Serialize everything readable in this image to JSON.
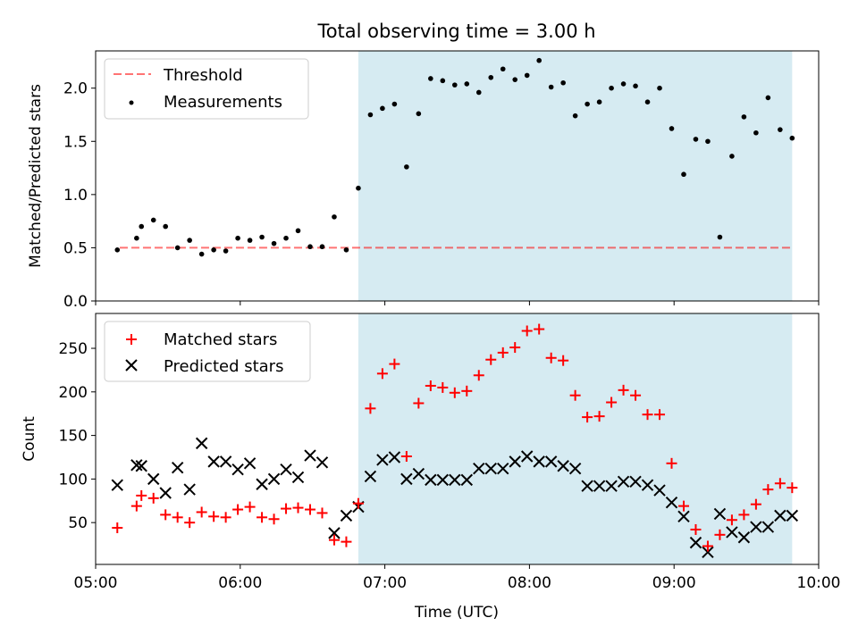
{
  "title": "Total observing time = 3.00 h",
  "colors": {
    "highlight": "#add8e6",
    "threshold": "#ff0000",
    "measurement": "#000000",
    "matched": "#ff0000",
    "predicted": "#000000"
  },
  "chart_data": [
    {
      "type": "scatter",
      "ylabel": "Matched/Predicted stars",
      "ylim": [
        0,
        2.35
      ],
      "yticks": [
        "0.0",
        "0.5",
        "1.0",
        "1.5",
        "2.0"
      ],
      "xlim": [
        "05:00",
        "10:00"
      ],
      "highlight_span": [
        "06:49",
        "09:49"
      ],
      "legend": {
        "position": "top-left",
        "threshold_label": "Threshold",
        "measurement_label": "Measurements"
      },
      "threshold": {
        "value": 0.5,
        "x_start": "05:10",
        "x_end": "09:49"
      },
      "series": [
        {
          "name": "Measurements",
          "x": [
            "05:09",
            "05:17",
            "05:19",
            "05:24",
            "05:29",
            "05:34",
            "05:39",
            "05:44",
            "05:49",
            "05:54",
            "05:59",
            "06:04",
            "06:09",
            "06:14",
            "06:19",
            "06:24",
            "06:29",
            "06:34",
            "06:39",
            "06:44",
            "06:49",
            "06:54",
            "06:59",
            "07:04",
            "07:09",
            "07:14",
            "07:19",
            "07:24",
            "07:29",
            "07:34",
            "07:39",
            "07:44",
            "07:49",
            "07:54",
            "07:59",
            "08:04",
            "08:09",
            "08:14",
            "08:19",
            "08:24",
            "08:29",
            "08:34",
            "08:39",
            "08:44",
            "08:49",
            "08:54",
            "08:59",
            "09:04",
            "09:09",
            "09:14",
            "09:19",
            "09:24",
            "09:29",
            "09:34",
            "09:39",
            "09:44",
            "09:49"
          ],
          "y": [
            0.48,
            0.59,
            0.7,
            0.76,
            0.7,
            0.5,
            0.57,
            0.44,
            0.48,
            0.47,
            0.59,
            0.57,
            0.6,
            0.54,
            0.59,
            0.66,
            0.51,
            0.51,
            0.79,
            0.48,
            1.06,
            1.75,
            1.81,
            1.85,
            1.26,
            1.76,
            2.09,
            2.07,
            2.03,
            2.04,
            1.96,
            2.1,
            2.18,
            2.08,
            2.12,
            2.26,
            2.01,
            2.05,
            1.74,
            1.85,
            1.87,
            2.0,
            2.04,
            2.02,
            1.87,
            2.0,
            1.62,
            1.19,
            1.52,
            1.5,
            0.6,
            1.36,
            1.73,
            1.58,
            1.91,
            1.61,
            1.53
          ]
        }
      ]
    },
    {
      "type": "scatter",
      "xlabel": "Time (UTC)",
      "ylabel": "Count",
      "ylim": [
        2,
        290
      ],
      "yticks": [
        "50",
        "100",
        "150",
        "200",
        "250"
      ],
      "xlim": [
        "05:00",
        "10:00"
      ],
      "xticks": [
        "05:00",
        "06:00",
        "07:00",
        "08:00",
        "09:00",
        "10:00"
      ],
      "highlight_span": [
        "06:49",
        "09:49"
      ],
      "legend": {
        "position": "top-left"
      },
      "series": [
        {
          "name": "Matched stars",
          "marker": "plus",
          "x": [
            "05:09",
            "05:17",
            "05:19",
            "05:24",
            "05:29",
            "05:34",
            "05:39",
            "05:44",
            "05:49",
            "05:54",
            "05:59",
            "06:04",
            "06:09",
            "06:14",
            "06:19",
            "06:24",
            "06:29",
            "06:34",
            "06:39",
            "06:44",
            "06:49",
            "06:54",
            "06:59",
            "07:04",
            "07:09",
            "07:14",
            "07:19",
            "07:24",
            "07:29",
            "07:34",
            "07:39",
            "07:44",
            "07:49",
            "07:54",
            "07:59",
            "08:04",
            "08:09",
            "08:14",
            "08:19",
            "08:24",
            "08:29",
            "08:34",
            "08:39",
            "08:44",
            "08:49",
            "08:54",
            "08:59",
            "09:04",
            "09:09",
            "09:14",
            "09:19",
            "09:24",
            "09:29",
            "09:34",
            "09:39",
            "09:44",
            "09:49"
          ],
          "y": [
            44,
            69,
            81,
            78,
            59,
            56,
            50,
            62,
            57,
            56,
            65,
            68,
            56,
            54,
            66,
            67,
            65,
            61,
            30,
            28,
            72,
            181,
            221,
            232,
            126,
            187,
            207,
            205,
            199,
            201,
            219,
            237,
            245,
            251,
            270,
            272,
            239,
            236,
            196,
            171,
            172,
            188,
            202,
            196,
            174,
            174,
            118,
            69,
            42,
            23,
            36,
            53,
            59,
            71,
            88,
            95,
            90
          ]
        },
        {
          "name": "Predicted stars",
          "marker": "x",
          "x": [
            "05:09",
            "05:17",
            "05:19",
            "05:24",
            "05:29",
            "05:34",
            "05:39",
            "05:44",
            "05:49",
            "05:54",
            "05:59",
            "06:04",
            "06:09",
            "06:14",
            "06:19",
            "06:24",
            "06:29",
            "06:34",
            "06:39",
            "06:44",
            "06:49",
            "06:54",
            "06:59",
            "07:04",
            "07:09",
            "07:14",
            "07:19",
            "07:24",
            "07:29",
            "07:34",
            "07:39",
            "07:44",
            "07:49",
            "07:54",
            "07:59",
            "08:04",
            "08:09",
            "08:14",
            "08:19",
            "08:24",
            "08:29",
            "08:34",
            "08:39",
            "08:44",
            "08:49",
            "08:54",
            "08:59",
            "09:04",
            "09:09",
            "09:14",
            "09:19",
            "09:24",
            "09:29",
            "09:34",
            "09:39",
            "09:44",
            "09:49"
          ],
          "y": [
            93,
            116,
            115,
            100,
            84,
            113,
            88,
            141,
            120,
            120,
            111,
            118,
            94,
            100,
            111,
            102,
            127,
            119,
            38,
            58,
            68,
            103,
            122,
            125,
            100,
            106,
            99,
            99,
            99,
            99,
            112,
            112,
            112,
            120,
            126,
            120,
            120,
            115,
            112,
            92,
            92,
            92,
            97,
            97,
            93,
            87,
            73,
            57,
            27,
            16,
            60,
            39,
            33,
            45,
            45,
            58,
            58
          ]
        }
      ]
    }
  ]
}
